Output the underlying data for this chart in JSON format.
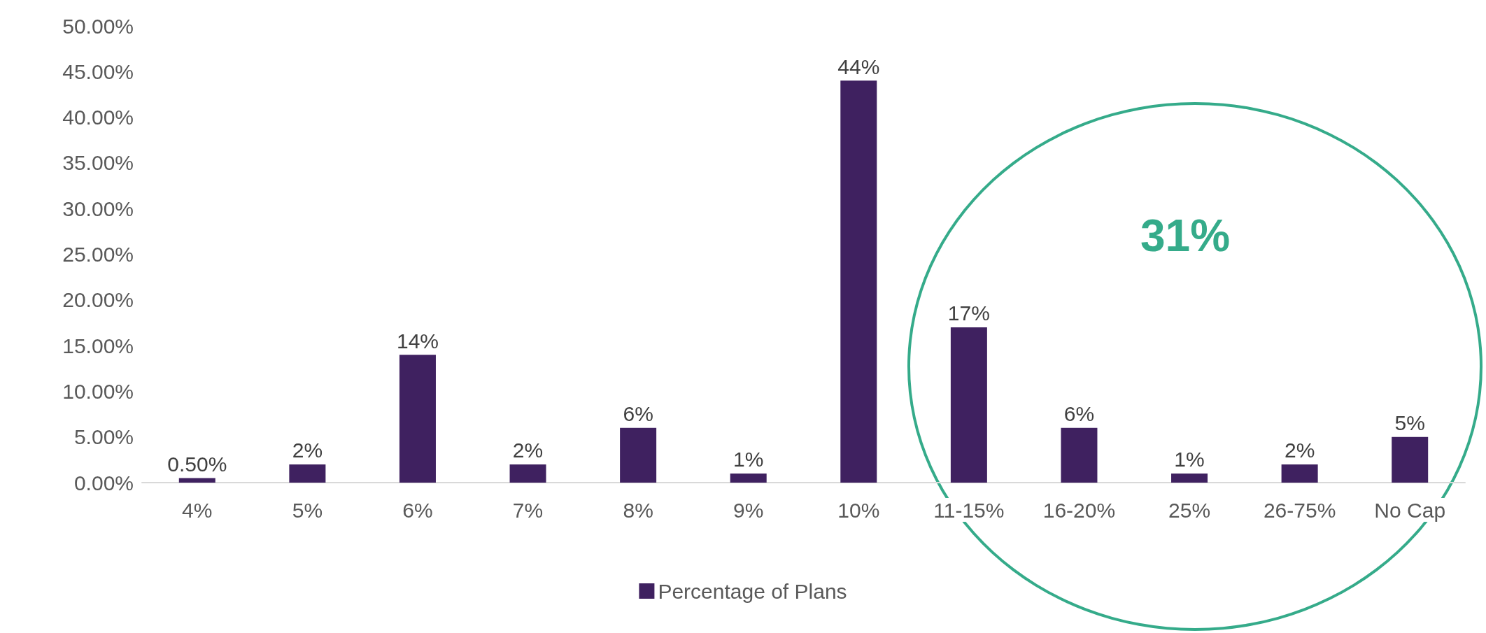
{
  "chart_data": {
    "type": "bar",
    "categories": [
      "4%",
      "5%",
      "6%",
      "7%",
      "8%",
      "9%",
      "10%",
      "11-15%",
      "16-20%",
      "25%",
      "26-75%",
      "No Cap"
    ],
    "series": [
      {
        "name": "Percentage of Plans",
        "color": "#3f2160",
        "values": [
          0.5,
          2,
          14,
          2,
          6,
          1,
          44,
          17,
          6,
          1,
          2,
          5
        ],
        "value_labels": [
          "0.50%",
          "2%",
          "14%",
          "2%",
          "6%",
          "1%",
          "44%",
          "17%",
          "6%",
          "1%",
          "2%",
          "5%"
        ]
      }
    ],
    "ylim": [
      0,
      50
    ],
    "yticks": [
      {
        "value": 0,
        "label": "0.00%"
      },
      {
        "value": 5,
        "label": "5.00%"
      },
      {
        "value": 10,
        "label": "10.00%"
      },
      {
        "value": 15,
        "label": "15.00%"
      },
      {
        "value": 20,
        "label": "20.00%"
      },
      {
        "value": 25,
        "label": "25.00%"
      },
      {
        "value": 30,
        "label": "30.00%"
      },
      {
        "value": 35,
        "label": "35.00%"
      },
      {
        "value": 40,
        "label": "40.00%"
      },
      {
        "value": 45,
        "label": "45.00%"
      },
      {
        "value": 50,
        "label": "50.00%"
      }
    ],
    "annotations": [
      "31%"
    ],
    "grid": false,
    "legend": "bottom"
  }
}
